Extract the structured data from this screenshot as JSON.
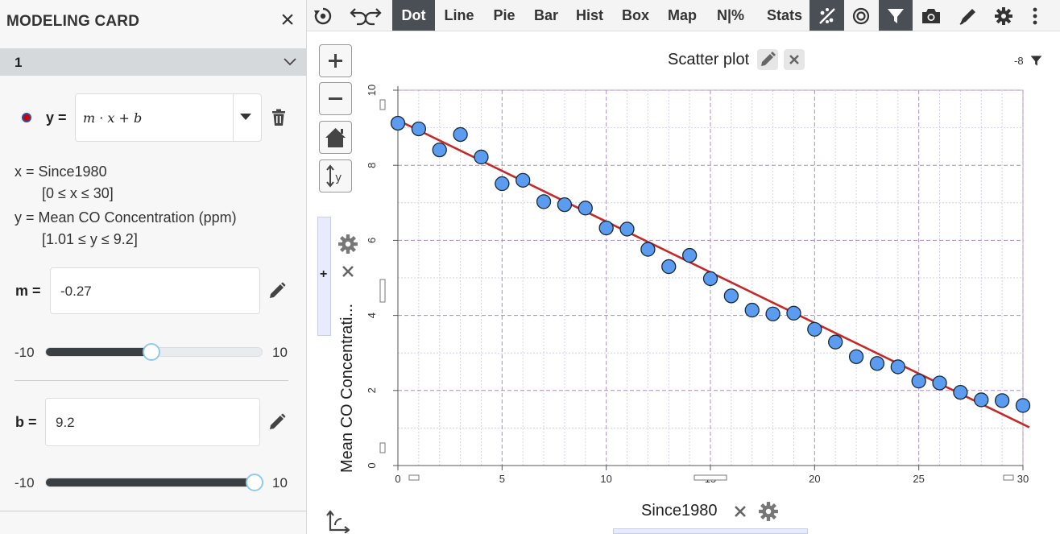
{
  "left_panel": {
    "title": "MODELING CARD",
    "model_number": "1",
    "y_eq_label": "y =",
    "formula": "m · x + b",
    "x_def": "x = Since1980",
    "x_range": "[0 ≤ x ≤ 30]",
    "y_def": "y = Mean CO Concentration (ppm)",
    "y_range": "[1.01 ≤ y ≤ 9.2]",
    "params": [
      {
        "label": "m =",
        "value": "-0.27",
        "min_label": "-10",
        "max_label": "10",
        "slider_fraction": 0.4865
      },
      {
        "label": "b =",
        "value": "9.2",
        "min_label": "-10",
        "max_label": "10",
        "slider_fraction": 0.96
      }
    ],
    "colors": {
      "model": "#cc0000"
    }
  },
  "toolbar": {
    "items": [
      "Dot",
      "Line",
      "Pie",
      "Bar",
      "Hist",
      "Box",
      "Map",
      "N|%",
      "Stats"
    ],
    "active": "Dot",
    "icons": [
      "reset-icon",
      "undo-redo-icon",
      "trend-icon",
      "target-icon",
      "filter-icon",
      "camera-icon",
      "pen-icon",
      "gear-icon",
      "more-icon"
    ]
  },
  "graph": {
    "title": "Scatter plot",
    "filter_count": "-8",
    "tools": [
      "zoom-in-icon",
      "zoom-out-icon",
      "home-icon",
      "y-scale-icon"
    ],
    "side_add": "+"
  },
  "chart_data": {
    "type": "scatter",
    "title": "Scatter plot",
    "xlabel": "Since1980",
    "ylabel": "Mean CO Concentrati...",
    "xlim": [
      0,
      30
    ],
    "ylim": [
      0,
      10
    ],
    "x_ticks": [
      0,
      5,
      10,
      15,
      20,
      25,
      30
    ],
    "y_ticks": [
      0,
      2,
      4,
      6,
      8,
      10
    ],
    "grid": true,
    "x": [
      0,
      1,
      2,
      3,
      4,
      5,
      6,
      7,
      8,
      9,
      10,
      11,
      12,
      13,
      14,
      15,
      16,
      17,
      18,
      19,
      20,
      21,
      22,
      23,
      24,
      25,
      26,
      27,
      28,
      29,
      30
    ],
    "y": [
      9.12,
      8.97,
      8.41,
      8.82,
      8.22,
      7.51,
      7.6,
      7.03,
      6.95,
      6.86,
      6.33,
      6.3,
      5.76,
      5.3,
      5.6,
      4.98,
      4.52,
      4.14,
      4.04,
      4.06,
      3.63,
      3.29,
      2.9,
      2.72,
      2.63,
      2.25,
      2.2,
      1.95,
      1.75,
      1.73,
      1.6
    ],
    "model_line": {
      "m": -0.27,
      "b": 9.2,
      "color": "#c62828"
    },
    "point_color": "#5b9cf0"
  }
}
